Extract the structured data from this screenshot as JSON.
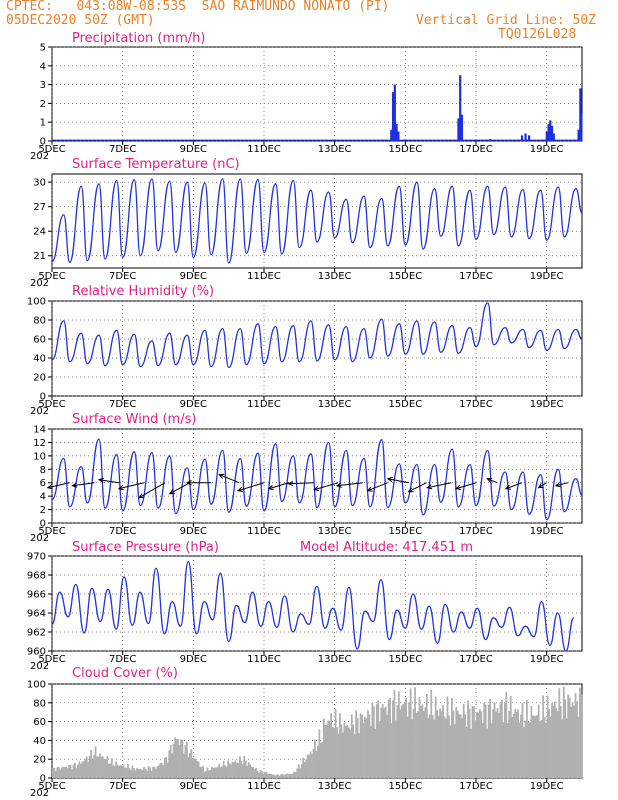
{
  "header": {
    "line1": "CPTEC:   043:08W-08:53S  SAO RAIMUNDO NONATO (PI)",
    "line2": "05DEC2020 50Z (GMT)",
    "grid_note": "Vertical Grid Line: 50Z",
    "code": "TQ0126L028"
  },
  "x_ticks": [
    "5DEC",
    "7DEC",
    "9DEC",
    "11DEC",
    "13DEC",
    "15DEC",
    "17DEC",
    "19DEC"
  ],
  "x_stub": "202",
  "colors": {
    "line": "#2233dd",
    "bars": "#1f2fe0",
    "cloud": "#b0b0b0",
    "title": "#e0208a",
    "header": "#e8822a"
  },
  "chart_data": [
    {
      "type": "bar",
      "title": "Precipitation (mm/h)",
      "ylim": [
        0,
        5
      ],
      "yticks": [
        "0",
        "1",
        "2",
        "3",
        "4",
        "5"
      ],
      "events": [
        {
          "day": 14.6,
          "value": 0.6
        },
        {
          "day": 14.65,
          "value": 2.6
        },
        {
          "day": 14.7,
          "value": 3.0
        },
        {
          "day": 14.75,
          "value": 0.9
        },
        {
          "day": 14.8,
          "value": 0.5
        },
        {
          "day": 16.5,
          "value": 1.2
        },
        {
          "day": 16.55,
          "value": 3.5
        },
        {
          "day": 16.6,
          "value": 1.4
        },
        {
          "day": 17.4,
          "value": 0.1
        },
        {
          "day": 18.3,
          "value": 0.3
        },
        {
          "day": 18.4,
          "value": 0.4
        },
        {
          "day": 18.5,
          "value": 0.3
        },
        {
          "day": 19.0,
          "value": 0.5
        },
        {
          "day": 19.05,
          "value": 0.9
        },
        {
          "day": 19.1,
          "value": 1.1
        },
        {
          "day": 19.15,
          "value": 0.8
        },
        {
          "day": 19.2,
          "value": 0.4
        },
        {
          "day": 19.9,
          "value": 0.6
        },
        {
          "day": 19.95,
          "value": 2.8
        },
        {
          "day": 19.98,
          "value": 1.5
        }
      ]
    },
    {
      "type": "line",
      "title": "Surface Temperature (nC)",
      "ylim": [
        19.5,
        31
      ],
      "yticks": [
        "21",
        "24",
        "27",
        "30"
      ],
      "daily_max": [
        26,
        29.5,
        29.8,
        30.2,
        30.3,
        30.4,
        30.1,
        30.0,
        29.9,
        30.4,
        30.4,
        30.3,
        29.8,
        30.2,
        29.0,
        28.8,
        27.9,
        28.3,
        28.0,
        29.5,
        30.0,
        29.2,
        29.5,
        29.0,
        29.5,
        29.4,
        29.1,
        29.0,
        29.4,
        29.2
      ],
      "daily_min": [
        20.3,
        20.2,
        20.4,
        20.6,
        20.8,
        21.0,
        21.6,
        21.4,
        20.8,
        21.1,
        20.1,
        21.3,
        21.4,
        21.2,
        22.0,
        22.7,
        23.2,
        22.6,
        22.0,
        22.2,
        22.3,
        21.8,
        23.4,
        22.2,
        23.0,
        23.6,
        23.3,
        23.1,
        22.9,
        23.3
      ]
    },
    {
      "type": "line",
      "title": "Relative Humidity (%)",
      "ylim": [
        0,
        100
      ],
      "yticks": [
        "0",
        "20",
        "40",
        "60",
        "80",
        "100"
      ],
      "daily_max": [
        79,
        66,
        64,
        69,
        65,
        58,
        66,
        64,
        69,
        71,
        71,
        76,
        73,
        74,
        79,
        75,
        73,
        71,
        81,
        76,
        79,
        78,
        74,
        72,
        98,
        72,
        70,
        69,
        70,
        70
      ],
      "daily_min": [
        38,
        36,
        34,
        32,
        33,
        31,
        32,
        33,
        33,
        31,
        30,
        33,
        34,
        36,
        36,
        37,
        38,
        36,
        40,
        42,
        44,
        44,
        46,
        45,
        52,
        54,
        56,
        51,
        48,
        50
      ]
    },
    {
      "type": "line",
      "title": "Surface Wind (m/s)",
      "ylim": [
        0,
        14
      ],
      "yticks": [
        "0",
        "2",
        "4",
        "6",
        "8",
        "10",
        "12",
        "14"
      ],
      "daily_max": [
        9.6,
        8.4,
        12.5,
        10.2,
        10.6,
        10.5,
        10.0,
        8.2,
        9.5,
        10.8,
        9.6,
        10.4,
        11.8,
        10.0,
        10.3,
        12.0,
        10.8,
        9.6,
        12.4,
        8.8,
        8.7,
        8.7,
        11.0,
        8.7,
        10.8,
        7.6,
        7.6,
        7.2,
        8.0,
        6.6
      ],
      "daily_min": [
        3.5,
        2.4,
        3.0,
        2.2,
        1.8,
        2.6,
        2.2,
        1.4,
        2.0,
        2.8,
        1.6,
        2.5,
        1.8,
        3.2,
        3.0,
        2.3,
        2.4,
        2.6,
        2.4,
        2.3,
        3.0,
        1.2,
        3.1,
        2.4,
        2.6,
        2.5,
        2.0,
        1.3,
        0.5,
        1.7
      ],
      "vectors": [
        {
          "day": 5.5,
          "u": 2.2,
          "v": -0.5
        },
        {
          "day": 6.2,
          "u": 2.2,
          "v": -0.3
        },
        {
          "day": 6.9,
          "u": 2.0,
          "v": 0.3
        },
        {
          "day": 7.6,
          "u": 2.5,
          "v": -0.6
        },
        {
          "day": 8.2,
          "u": 2.6,
          "v": -1.5
        },
        {
          "day": 8.9,
          "u": 2.0,
          "v": -1.1
        },
        {
          "day": 9.5,
          "u": 2.4,
          "v": 0.0
        },
        {
          "day": 10.3,
          "u": 2.0,
          "v": 0.8
        },
        {
          "day": 11.0,
          "u": 2.6,
          "v": -0.8
        },
        {
          "day": 11.7,
          "u": 2.0,
          "v": -0.6
        },
        {
          "day": 12.4,
          "u": 2.5,
          "v": -0.1
        },
        {
          "day": 13.1,
          "u": 2.4,
          "v": -0.7
        },
        {
          "day": 13.8,
          "u": 2.6,
          "v": -0.3
        },
        {
          "day": 14.5,
          "u": 2.0,
          "v": -0.8
        },
        {
          "day": 15.1,
          "u": 2.1,
          "v": 0.4
        },
        {
          "day": 15.6,
          "u": 1.8,
          "v": -0.9
        },
        {
          "day": 16.3,
          "u": 2.4,
          "v": -0.5
        },
        {
          "day": 17.0,
          "u": 2.0,
          "v": -0.6
        },
        {
          "day": 17.6,
          "u": 1.0,
          "v": 0.4
        },
        {
          "day": 18.3,
          "u": 1.6,
          "v": -0.6
        },
        {
          "day": 19.0,
          "u": 0.8,
          "v": -0.5
        },
        {
          "day": 19.6,
          "u": 1.2,
          "v": -0.3
        }
      ]
    },
    {
      "type": "line",
      "title": "Surface Pressure (hPa)",
      "subtitle": "Model Altitude: 417.451  m",
      "ylim": [
        960,
        970
      ],
      "yticks": [
        "960",
        "962",
        "964",
        "966",
        "968",
        "970"
      ],
      "maxima": [
        966.2,
        967.0,
        966.6,
        966.5,
        967.8,
        966.2,
        968.7,
        965.2,
        969.4,
        965.2,
        968.2,
        964.8,
        966.2,
        965.2,
        965.8,
        963.9,
        966.8,
        964.5,
        966.7,
        964.2,
        967.5,
        964.3,
        966.0,
        964.7,
        964.9,
        964.1,
        964.5,
        963.5,
        964.6,
        962.6,
        965.2,
        964.0,
        963.5
      ],
      "minima": [
        962.8,
        963.6,
        961.9,
        963.1,
        962.3,
        962.7,
        962.9,
        961.8,
        962.6,
        961.8,
        963.3,
        961.0,
        963.0,
        962.6,
        962.5,
        962.0,
        962.8,
        962.4,
        962.2,
        960.2,
        963.1,
        961.2,
        962.4,
        962.3,
        960.8,
        962.0,
        962.4,
        961.2,
        962.5,
        961.6,
        961.5,
        960.6,
        960.0
      ]
    },
    {
      "type": "area",
      "title": "Cloud Cover (%)",
      "ylim": [
        0,
        100
      ],
      "yticks": [
        "0",
        "20",
        "40",
        "60",
        "80",
        "100"
      ],
      "profile_days": [
        5.0,
        5.7,
        6.2,
        6.7,
        7.4,
        7.9,
        8.2,
        8.5,
        8.8,
        9.3,
        9.8,
        10.4,
        10.8,
        11.3,
        11.8,
        12.3,
        12.8,
        13.3,
        13.8,
        14.3,
        14.8,
        15.4,
        16.0,
        16.6,
        17.2,
        17.8,
        18.3,
        18.8,
        19.3,
        19.9
      ],
      "profile_values": [
        12,
        18,
        35,
        20,
        12,
        14,
        25,
        55,
        40,
        10,
        18,
        25,
        10,
        4,
        6,
        35,
        70,
        60,
        72,
        85,
        92,
        90,
        82,
        78,
        80,
        88,
        75,
        78,
        92,
        95
      ]
    }
  ]
}
